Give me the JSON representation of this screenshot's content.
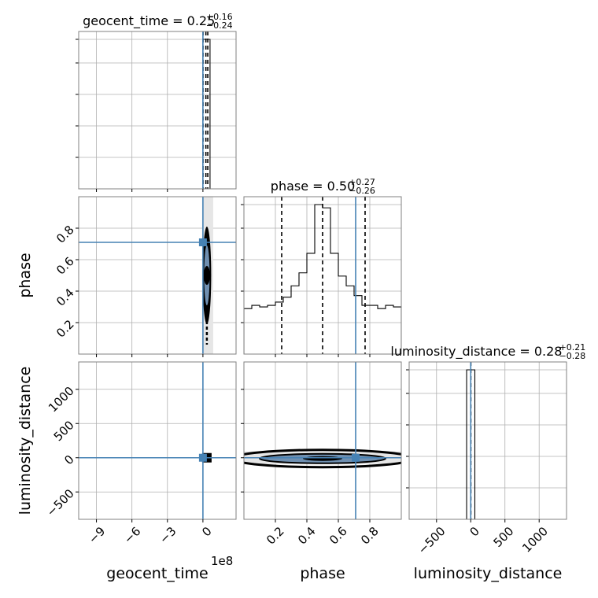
{
  "chart_data": {
    "type": "corner",
    "parameters": [
      "geocent_time",
      "phase",
      "luminosity_distance"
    ],
    "truth": {
      "geocent_time": 0,
      "phase": 0.71,
      "luminosity_distance": 0
    },
    "truth_color": "#4682b4",
    "offset_text": "1e8",
    "titles": [
      {
        "param": "geocent_time",
        "label": "geocent_time = 0.25",
        "plus": "+0.16",
        "minus": "−0.24"
      },
      {
        "param": "phase",
        "label": "phase = 0.50",
        "plus": "+0.27",
        "minus": "−0.26"
      },
      {
        "param": "luminosity_distance",
        "label": "luminosity_distance = 0.28",
        "plus": "+0.21",
        "minus": "−0.28"
      }
    ],
    "axes": {
      "geocent_time": {
        "range": [
          -10.5,
          2.8
        ],
        "ticks": [
          -9,
          -6,
          -3,
          0
        ],
        "tick_labels": [
          "−9",
          "−6",
          "−3",
          "0"
        ]
      },
      "phase": {
        "range": [
          0.0,
          1.0
        ],
        "ticks": [
          0.2,
          0.4,
          0.6,
          0.8
        ],
        "tick_labels": [
          "0.2",
          "0.4",
          "0.6",
          "0.8"
        ]
      },
      "luminosity_distance": {
        "range": [
          -900,
          1400
        ],
        "ticks": [
          -500,
          0,
          500,
          1000
        ],
        "tick_labels": [
          "−500",
          "0",
          "500",
          "1000"
        ]
      }
    },
    "histograms": {
      "geocent_time": {
        "edges": [
          -0.1,
          0.0,
          0.1,
          0.2,
          0.3,
          0.4,
          0.5,
          0.6
        ],
        "counts": [
          0.0,
          1.0,
          1.0,
          1.0,
          1.0,
          1.0,
          1.0
        ]
      },
      "phase": {
        "edges": [
          0.0,
          0.05,
          0.1,
          0.15,
          0.2,
          0.25,
          0.3,
          0.35,
          0.4,
          0.45,
          0.5,
          0.55,
          0.6,
          0.65,
          0.7,
          0.75,
          0.8,
          0.85,
          0.9,
          0.95,
          1.0
        ],
        "counts": [
          0.28,
          0.3,
          0.29,
          0.3,
          0.32,
          0.35,
          0.42,
          0.5,
          0.62,
          0.92,
          0.9,
          0.62,
          0.48,
          0.42,
          0.36,
          0.3,
          0.3,
          0.28,
          0.3,
          0.29
        ]
      },
      "luminosity_distance": {
        "edges": [
          -60,
          0,
          60
        ],
        "counts": [
          1.0,
          1.0
        ]
      }
    },
    "quantiles": {
      "geocent_time": [
        0.01,
        0.25,
        0.41
      ],
      "phase": [
        0.24,
        0.5,
        0.77
      ],
      "luminosity_distance": [
        0.0,
        0.28,
        0.49
      ]
    },
    "grid": true
  }
}
